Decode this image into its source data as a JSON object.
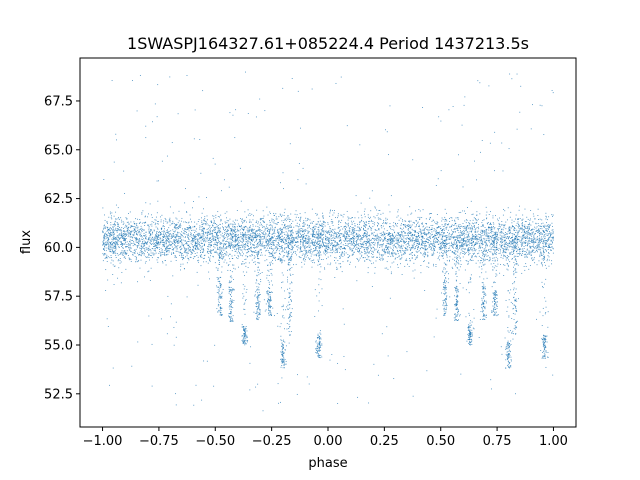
{
  "chart_data": {
    "type": "scatter",
    "title": "1SWASPJ164327.61+085224.4 Period 1437213.5s",
    "xlabel": "phase",
    "ylabel": "flux",
    "xlim": [
      -1.1,
      1.1
    ],
    "ylim": [
      50.8,
      69.7
    ],
    "x_ticks": [
      -1.0,
      -0.75,
      -0.5,
      -0.25,
      0.0,
      0.25,
      0.5,
      0.75,
      1.0
    ],
    "x_tick_labels": [
      "−1.00",
      "−0.75",
      "−0.50",
      "−0.25",
      "0.00",
      "0.25",
      "0.50",
      "0.75",
      "1.00"
    ],
    "y_ticks": [
      52.5,
      55.0,
      57.5,
      60.0,
      62.5,
      65.0,
      67.5
    ],
    "y_tick_labels": [
      "52.5",
      "55.0",
      "57.5",
      "60.0",
      "62.5",
      "65.0",
      "67.5"
    ],
    "grid": false,
    "legend": "none",
    "point_color": "#1f77b4",
    "series": [
      {
        "phase_range": [
          -1.0,
          1.0
        ],
        "baseline_flux": 60.4,
        "baseline_scatter": 0.7,
        "dip_clusters": [
          {
            "phase": -0.48,
            "flux_range": [
              56.5,
              58.5
            ]
          },
          {
            "phase": -0.43,
            "flux_range": [
              56.2,
              58.0
            ]
          },
          {
            "phase": -0.37,
            "flux_range": [
              55.0,
              56.0
            ]
          },
          {
            "phase": -0.31,
            "flux_range": [
              56.3,
              58.0
            ]
          },
          {
            "phase": -0.26,
            "flux_range": [
              56.5,
              57.8
            ]
          },
          {
            "phase": -0.2,
            "flux_range": [
              53.8,
              55.3
            ]
          },
          {
            "phase": -0.17,
            "flux_range": [
              55.5,
              59.5
            ]
          },
          {
            "phase": -0.04,
            "flux_range": [
              54.3,
              55.5
            ]
          },
          {
            "phase": 0.52,
            "flux_range": [
              56.5,
              58.5
            ]
          },
          {
            "phase": 0.57,
            "flux_range": [
              56.2,
              58.0
            ]
          },
          {
            "phase": 0.63,
            "flux_range": [
              55.0,
              56.0
            ]
          },
          {
            "phase": 0.69,
            "flux_range": [
              56.3,
              58.0
            ]
          },
          {
            "phase": 0.74,
            "flux_range": [
              56.5,
              57.8
            ]
          },
          {
            "phase": 0.8,
            "flux_range": [
              53.8,
              55.3
            ]
          },
          {
            "phase": 0.83,
            "flux_range": [
              55.5,
              59.5
            ]
          },
          {
            "phase": 0.96,
            "flux_range": [
              54.3,
              55.5
            ]
          }
        ],
        "outlier_flux_range": [
          51.6,
          69.0
        ]
      }
    ]
  }
}
